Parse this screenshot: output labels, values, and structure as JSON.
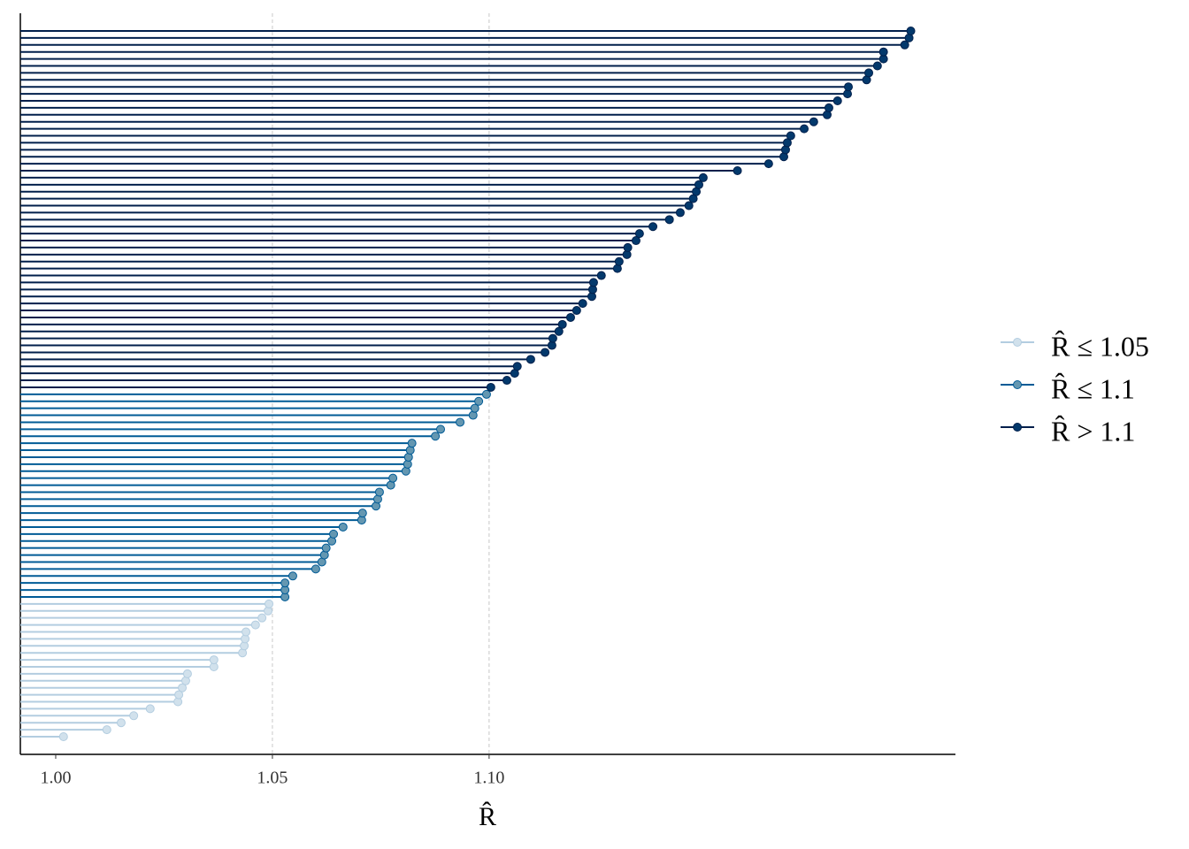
{
  "chart_data": {
    "type": "lollipop",
    "x_label": "R̂",
    "xlim": [
      0.99184,
      1.2076
    ],
    "xticks": [
      {
        "value": 1.0,
        "label": "1.00"
      },
      {
        "value": 1.05,
        "label": "1.05"
      },
      {
        "value": 1.1,
        "label": "1.10"
      }
    ],
    "reference_lines": [
      1.05,
      1.1
    ],
    "series": [
      {
        "name": "R̂ ≤ 1.05",
        "color": "#b3cde0",
        "point_color": "#d1e1ec",
        "values": [
          1.0018,
          1.0118,
          1.0151,
          1.018,
          1.0218,
          1.0282,
          1.0284,
          1.0292,
          1.03,
          1.0304,
          1.0365,
          1.0365,
          1.0431,
          1.0435,
          1.0437,
          1.0439,
          1.0461,
          1.0476,
          1.049,
          1.0492
        ]
      },
      {
        "name": "R̂ ≤ 1.1",
        "color": "#005b96",
        "point_color": "#6497b1",
        "values": [
          1.0529,
          1.0529,
          1.0529,
          1.0547,
          1.06,
          1.0614,
          1.062,
          1.0624,
          1.0637,
          1.0641,
          1.0663,
          1.0706,
          1.0708,
          1.0739,
          1.0743,
          1.0747,
          1.0773,
          1.0778,
          1.0808,
          1.0812,
          1.0814,
          1.0818,
          1.0822,
          1.0876,
          1.0888,
          1.0933,
          1.0963,
          1.0967,
          1.0976,
          1.0994
        ]
      },
      {
        "name": "R̂ > 1.1",
        "color": "#011f4b",
        "point_color": "#03396c",
        "values": [
          1.1004,
          1.1041,
          1.1059,
          1.1065,
          1.1096,
          1.1129,
          1.1145,
          1.1147,
          1.1161,
          1.1169,
          1.1188,
          1.1202,
          1.1216,
          1.1237,
          1.1239,
          1.1241,
          1.1259,
          1.1296,
          1.13,
          1.1318,
          1.132,
          1.1339,
          1.1347,
          1.1378,
          1.1416,
          1.1441,
          1.1461,
          1.1471,
          1.1478,
          1.1484,
          1.1494,
          1.1573,
          1.1645,
          1.168,
          1.1684,
          1.1688,
          1.1696,
          1.1727,
          1.1749,
          1.178,
          1.1784,
          1.1804,
          1.1827,
          1.1829,
          1.1871,
          1.1876,
          1.1896,
          1.191,
          1.191,
          1.1959,
          1.1969,
          1.1973
        ]
      }
    ]
  }
}
